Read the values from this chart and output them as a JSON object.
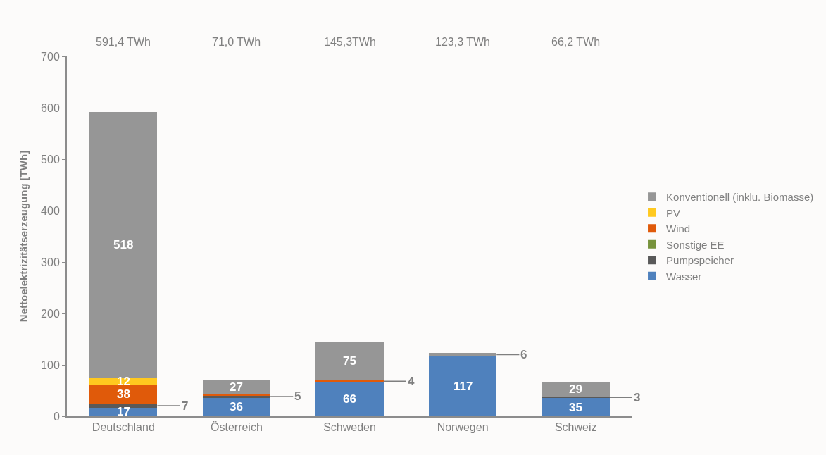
{
  "chart_data": {
    "type": "bar",
    "stacked": true,
    "ylabel": "Nettoelektrizitätserzeugung [TWh]",
    "categories": [
      "Deutschland",
      "Österreich",
      "Schweden",
      "Norwegen",
      "Schweiz"
    ],
    "series": [
      {
        "name": "Wasser",
        "color": "#4f81bd",
        "values": [
          17,
          36,
          66,
          117,
          35
        ],
        "value_labels": [
          "17",
          "36",
          "66",
          "117",
          "35"
        ]
      },
      {
        "name": "Pumpspeicher",
        "color": "#595959",
        "values": [
          7,
          5,
          null,
          null,
          3
        ],
        "value_labels": [
          "7",
          "5",
          null,
          null,
          "3"
        ]
      },
      {
        "name": "Sonstige EE",
        "color": "#77933c",
        "values": [
          null,
          null,
          null,
          null,
          null
        ]
      },
      {
        "name": "Wind",
        "color": "#e05a0a",
        "values": [
          38,
          2,
          4,
          null,
          null
        ],
        "value_labels": [
          "38",
          null,
          "4",
          null,
          null
        ]
      },
      {
        "name": "PV",
        "color": "#ffc91f",
        "values": [
          12,
          null,
          null,
          null,
          null
        ],
        "value_labels": [
          "12",
          null,
          null,
          null,
          null
        ]
      },
      {
        "name": "Konventionell (inklu. Biomasse)",
        "color": "#969696",
        "values": [
          518,
          27,
          75,
          6,
          29
        ],
        "value_labels": [
          "518",
          "27",
          "75",
          "6",
          "29"
        ]
      }
    ],
    "annotations": [
      "591,4 TWh",
      "71,0 TWh",
      "145,3TWh",
      "123,3 TWh",
      "66,2 TWh"
    ],
    "ylim": [
      0,
      700
    ],
    "yticks": [
      0,
      100,
      200,
      300,
      400,
      500,
      600,
      700
    ],
    "legend": "right"
  }
}
